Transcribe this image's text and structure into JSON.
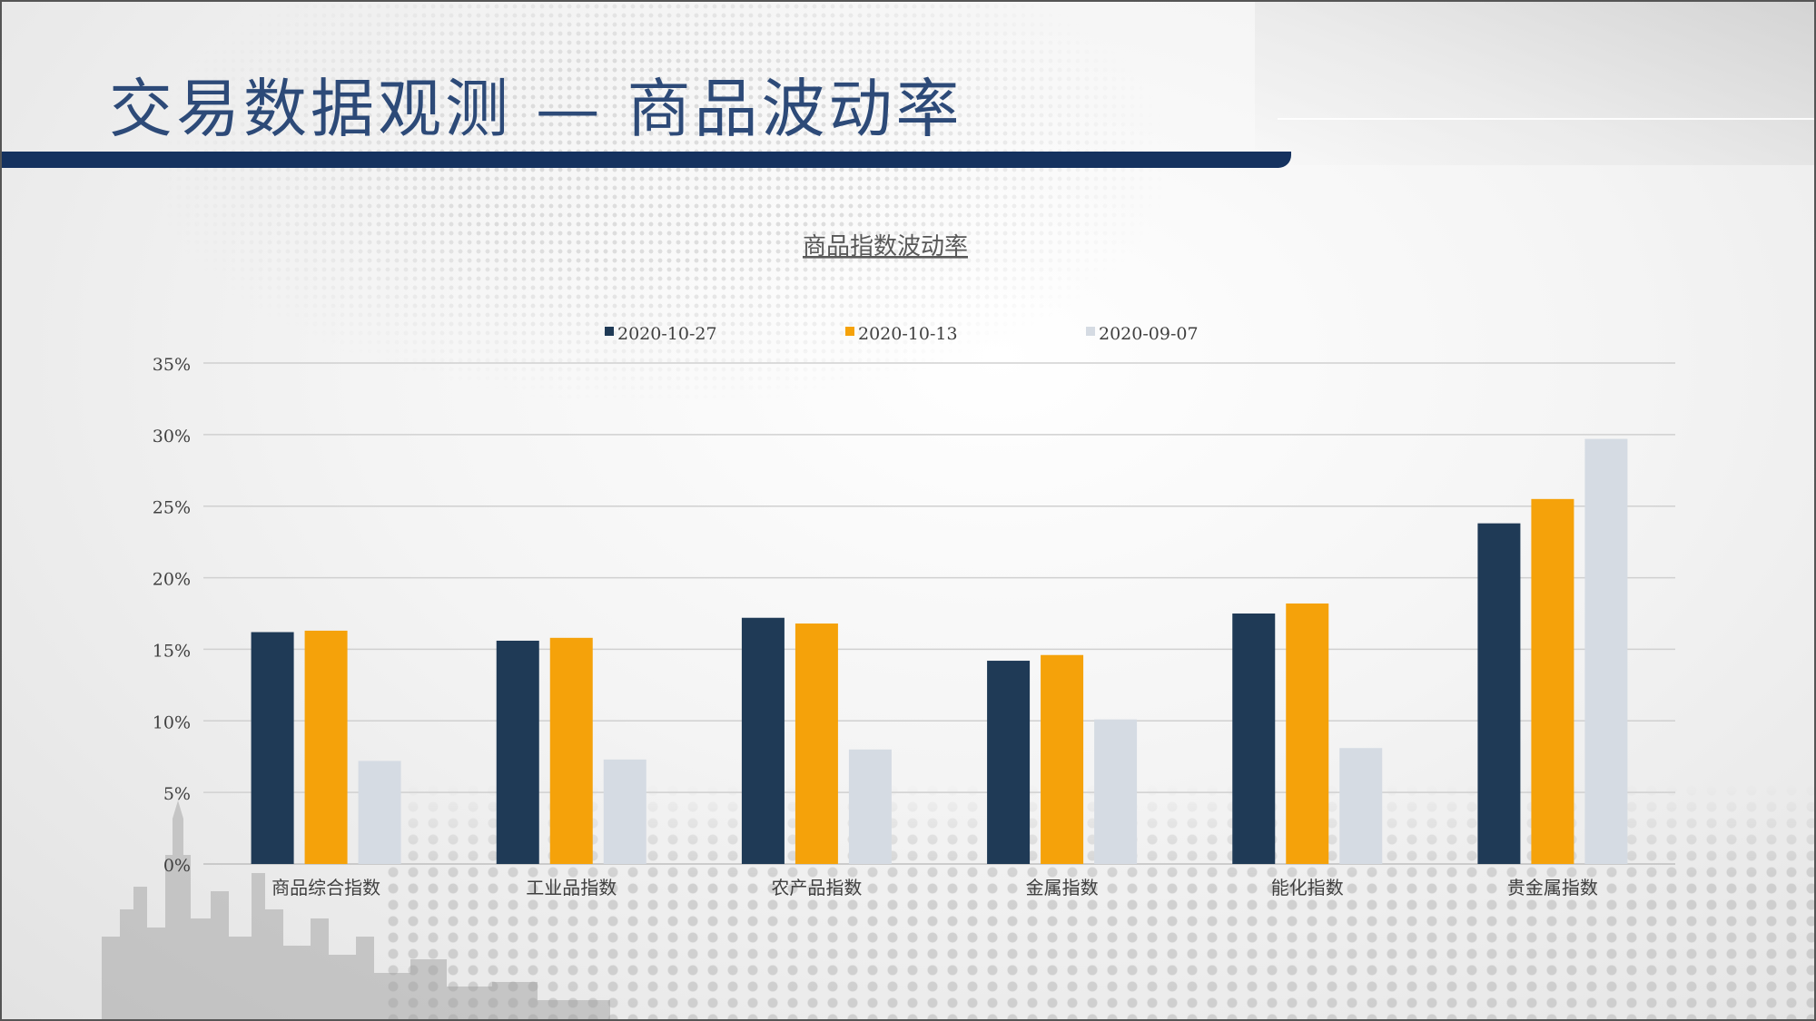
{
  "slide": {
    "title": "交易数据观测  —  商品波动率"
  },
  "colors": {
    "title": "#2d4a78",
    "title_bar": "#15325f",
    "series": [
      "#1f3a56",
      "#f5a20a",
      "#d5dbe3"
    ],
    "grid": "#d0d0d0",
    "text": "#404040"
  },
  "chart_data": {
    "type": "bar",
    "title": "商品指数波动率",
    "categories": [
      "商品综合指数",
      "工业品指数",
      "农产品指数",
      "金属指数",
      "能化指数",
      "贵金属指数"
    ],
    "series": [
      {
        "name": "2020-10-27",
        "values": [
          16.2,
          15.6,
          17.2,
          14.2,
          17.5,
          23.8
        ]
      },
      {
        "name": "2020-10-13",
        "values": [
          16.3,
          15.8,
          16.8,
          14.6,
          18.2,
          25.5
        ]
      },
      {
        "name": "2020-09-07",
        "values": [
          7.2,
          7.3,
          8.0,
          10.1,
          8.1,
          29.7
        ]
      }
    ],
    "ylim": [
      0,
      35
    ],
    "yticks": [
      "0%",
      "5%",
      "10%",
      "15%",
      "20%",
      "25%",
      "30%",
      "35%"
    ],
    "grid": true,
    "legend_position": "top-center"
  }
}
